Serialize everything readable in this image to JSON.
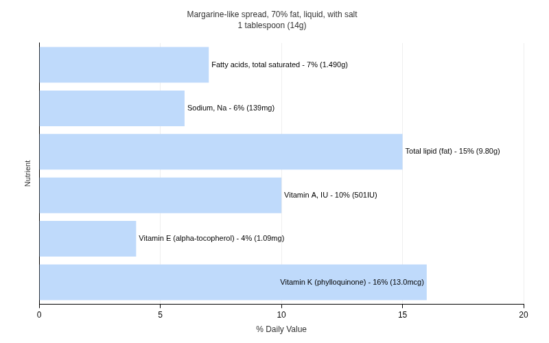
{
  "chart_data": {
    "type": "bar",
    "orientation": "horizontal",
    "title": "Margarine-like spread, 70% fat, liquid, with salt",
    "subtitle": "1 tablespoon (14g)",
    "x_label": "% Daily Value",
    "y_label": "Nutrient",
    "categories": [
      "Fatty acids, total saturated - 7% (1.490g)",
      "Sodium, Na - 6% (139mg)",
      "Total lipid (fat) - 15% (9.80g)",
      "Vitamin A, IU - 10% (501IU)",
      "Vitamin E (alpha-tocopherol) - 4% (1.09mg)",
      "Vitamin K (phylloquinone) - 16% (13.0mcg)"
    ],
    "values": [
      7,
      6,
      15,
      10,
      4,
      16
    ],
    "color": "#bfdafb",
    "xlim": [
      0,
      20
    ],
    "xticks": [
      0,
      5,
      10,
      15,
      20
    ],
    "grid": true,
    "tick_labels": "x"
  }
}
